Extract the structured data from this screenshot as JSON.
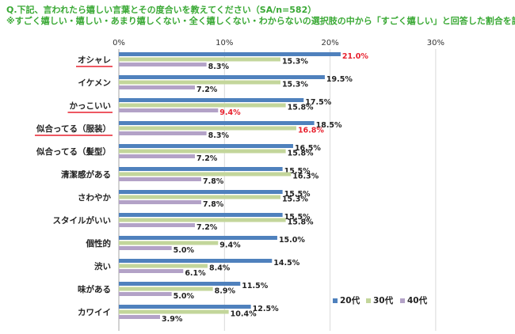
{
  "title": {
    "line1": "Q.下記、言われたら嬉しい言葉とその度合いを教えてください（SA/n=582）",
    "line2": "※すごく嬉しい・嬉しい・あまり嬉しくない・全く嬉しくない・わからないの選択肢の中から「すごく嬉しい」と回答した割合を記載。"
  },
  "colors": {
    "title": "#3aa935",
    "s20": "#4f81bd",
    "s30": "#c3d69b",
    "s40": "#b3a2c7",
    "highlight_text": "#e8212e",
    "underline": "#e8212e",
    "grid": "#d9d9d9"
  },
  "chart_data": {
    "type": "bar",
    "orientation": "horizontal",
    "categories": [
      "オシャレ",
      "イケメン",
      "かっこいい",
      "似合ってる（服装）",
      "似合ってる（髪型）",
      "清潔感がある",
      "さわやか",
      "スタイルがいい",
      "個性的",
      "渋い",
      "味がある",
      "カワイイ"
    ],
    "underlined_categories": [
      0,
      2,
      3
    ],
    "series": [
      {
        "name": "20代",
        "values": [
          21.0,
          19.5,
          17.5,
          18.5,
          16.5,
          15.5,
          15.5,
          15.5,
          15.0,
          14.5,
          11.5,
          12.5
        ],
        "highlight_index": 0
      },
      {
        "name": "30代",
        "values": [
          15.3,
          15.3,
          15.8,
          16.8,
          15.8,
          16.3,
          15.3,
          15.8,
          9.4,
          8.4,
          8.9,
          10.4
        ],
        "highlight_index": 3
      },
      {
        "name": "40代",
        "values": [
          8.3,
          7.2,
          9.4,
          8.3,
          7.2,
          7.8,
          7.8,
          7.2,
          5.0,
          6.1,
          5.0,
          3.9
        ],
        "highlight_index": 2
      }
    ],
    "value_suffix": "%",
    "xlim": [
      0,
      30
    ],
    "xticks": [
      "0%",
      "10%",
      "20%",
      "30%"
    ],
    "grid": true,
    "legend_position": "bottom-right"
  }
}
